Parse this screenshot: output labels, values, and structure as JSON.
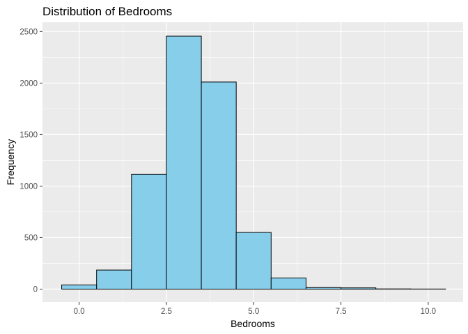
{
  "chart_data": {
    "type": "bar",
    "title": "Distribution of Bedrooms",
    "xlabel": "Bedrooms",
    "ylabel": "Frequency",
    "xlim": [
      -1.05,
      11.0
    ],
    "ylim": [
      -125,
      2590
    ],
    "x_ticks": [
      0.0,
      2.5,
      5.0,
      7.5,
      10.0
    ],
    "x_tick_labels": [
      "0.0",
      "2.5",
      "5.0",
      "7.5",
      "10.0"
    ],
    "y_ticks": [
      0,
      500,
      1000,
      1500,
      2000,
      2500
    ],
    "y_tick_labels": [
      "0",
      "500",
      "1000",
      "1500",
      "2000",
      "2500"
    ],
    "bins": [
      {
        "x_start": -0.5,
        "x_end": 0.5,
        "count": 40
      },
      {
        "x_start": 0.5,
        "x_end": 1.5,
        "count": 185
      },
      {
        "x_start": 1.5,
        "x_end": 2.5,
        "count": 1115
      },
      {
        "x_start": 2.5,
        "x_end": 3.5,
        "count": 2455
      },
      {
        "x_start": 3.5,
        "x_end": 4.5,
        "count": 2010
      },
      {
        "x_start": 4.5,
        "x_end": 5.5,
        "count": 550
      },
      {
        "x_start": 5.5,
        "x_end": 6.5,
        "count": 108
      },
      {
        "x_start": 6.5,
        "x_end": 7.5,
        "count": 15
      },
      {
        "x_start": 7.5,
        "x_end": 8.5,
        "count": 12
      },
      {
        "x_start": 8.5,
        "x_end": 9.5,
        "count": 2
      },
      {
        "x_start": 9.5,
        "x_end": 10.5,
        "count": 1
      }
    ],
    "grid": true,
    "colors": {
      "bar_fill": "#87ceeb",
      "bar_outline": "#000000",
      "panel_background": "#ebebeb",
      "grid_major": "#ffffff"
    }
  }
}
